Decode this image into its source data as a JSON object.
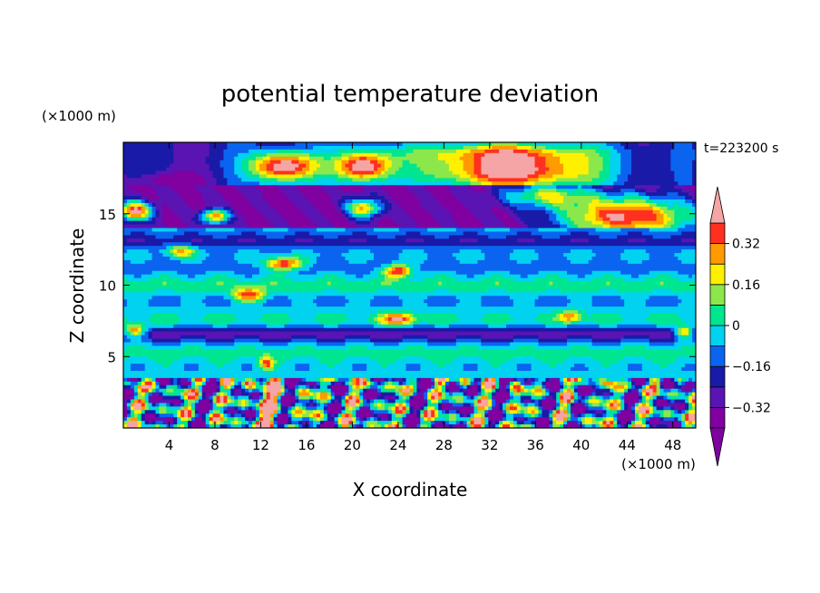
{
  "chart_data": {
    "type": "heatmap",
    "title": "potential temperature deviation",
    "xlabel": "X coordinate",
    "ylabel": "Z coordinate",
    "x_unit": "(×1000 m)",
    "y_unit": "(×1000 m)",
    "time_label": "t=223200 s",
    "xlim": [
      0,
      50
    ],
    "ylim": [
      0,
      20
    ],
    "x_ticks": [
      4,
      8,
      12,
      16,
      20,
      24,
      28,
      32,
      36,
      40,
      44,
      48
    ],
    "y_ticks": [
      5,
      10,
      15
    ],
    "colorbar": {
      "levels": [
        -0.4,
        -0.32,
        -0.24,
        -0.16,
        -0.08,
        0,
        0.08,
        0.16,
        0.24,
        0.32,
        0.4
      ],
      "labeled_levels": [
        0.32,
        0.16,
        0,
        -0.16,
        -0.32
      ],
      "labels": [
        "0.32",
        "0.16",
        "0",
        "−0.16",
        "−0.32"
      ],
      "colors": [
        "#8000a0",
        "#5a14b4",
        "#1a1aa8",
        "#0a64f0",
        "#00d2f0",
        "#00e690",
        "#8ce84a",
        "#fff000",
        "#ff9a00",
        "#ff3020",
        "#f5a5a5"
      ],
      "extend": "both"
    }
  }
}
